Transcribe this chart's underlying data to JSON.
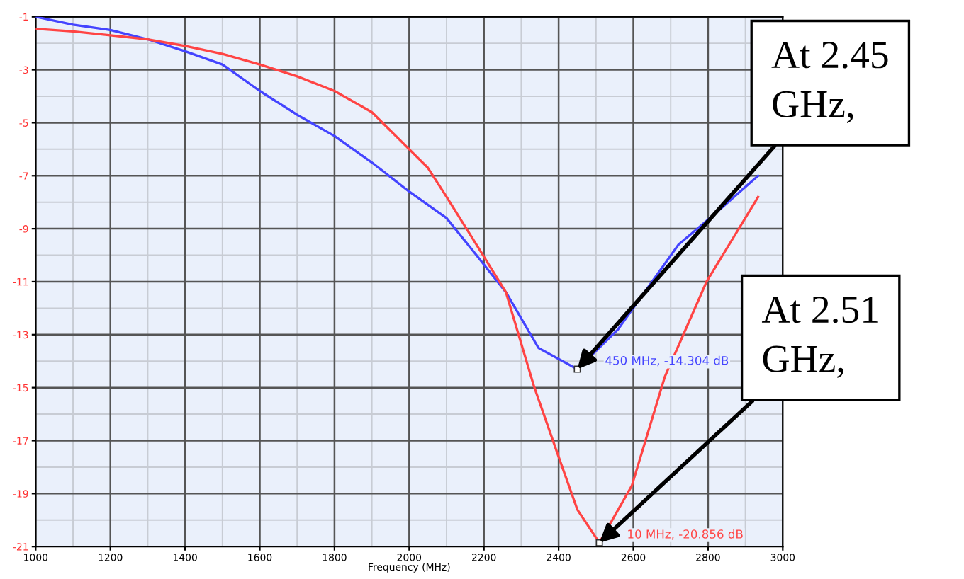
{
  "chart_data": {
    "type": "line",
    "xlabel": "Frequency (MHz)",
    "x": [
      1000,
      1100,
      1200,
      1300,
      1400,
      1500,
      1600,
      1700,
      1800,
      1900,
      2000,
      2050,
      2100,
      2180,
      2259,
      2334,
      2396,
      2450,
      2509,
      2596,
      2684,
      2796,
      2934
    ],
    "series": [
      {
        "color": "#4444ff",
        "x": [
          1000,
          1100,
          1200,
          1300,
          1400,
          1500,
          1600,
          1700,
          1800,
          1900,
          2000,
          2100,
          2180,
          2259,
          2346,
          2450,
          2559,
          2721,
          2809,
          2934
        ],
        "values": [
          -1.0,
          -1.3,
          -1.5,
          -1.85,
          -2.3,
          -2.8,
          -3.8,
          -4.7,
          -5.5,
          -6.5,
          -7.6,
          -8.6,
          -10.0,
          -11.4,
          -13.5,
          -14.304,
          -12.8,
          -9.6,
          -8.55,
          -7.0
        ]
      },
      {
        "color": "#ff4444",
        "values": [
          -1.45,
          -1.55,
          -1.7,
          -1.85,
          -2.1,
          -2.4,
          -2.8,
          -3.25,
          -3.8,
          -4.6,
          -6.0,
          -6.7,
          -7.8,
          -9.6,
          -11.4,
          -14.95,
          -17.45,
          -19.6,
          -20.856,
          -18.7,
          -14.6,
          -11.0,
          -7.8
        ]
      }
    ],
    "xlim": [
      1000,
      3000
    ],
    "ylim": [
      -21,
      -1
    ],
    "xticks": [
      1000,
      1200,
      1400,
      1600,
      1800,
      2000,
      2200,
      2400,
      2600,
      2800,
      3000
    ],
    "yticks": [
      -1,
      -3,
      -5,
      -7,
      -9,
      -11,
      -13,
      -15,
      -17,
      -19,
      -21
    ],
    "grid": true,
    "marker": "none",
    "line_style": "solid",
    "annotations": [
      "450 MHz, -14.304 dB",
      "10 MHz, -20.856 dB",
      {
        "text": "At 2.45\nGHz,",
        "x": 2450,
        "y": -14.304
      },
      {
        "text": "At 2.51\nGHz,",
        "x": 2509,
        "y": -20.856
      }
    ]
  }
}
